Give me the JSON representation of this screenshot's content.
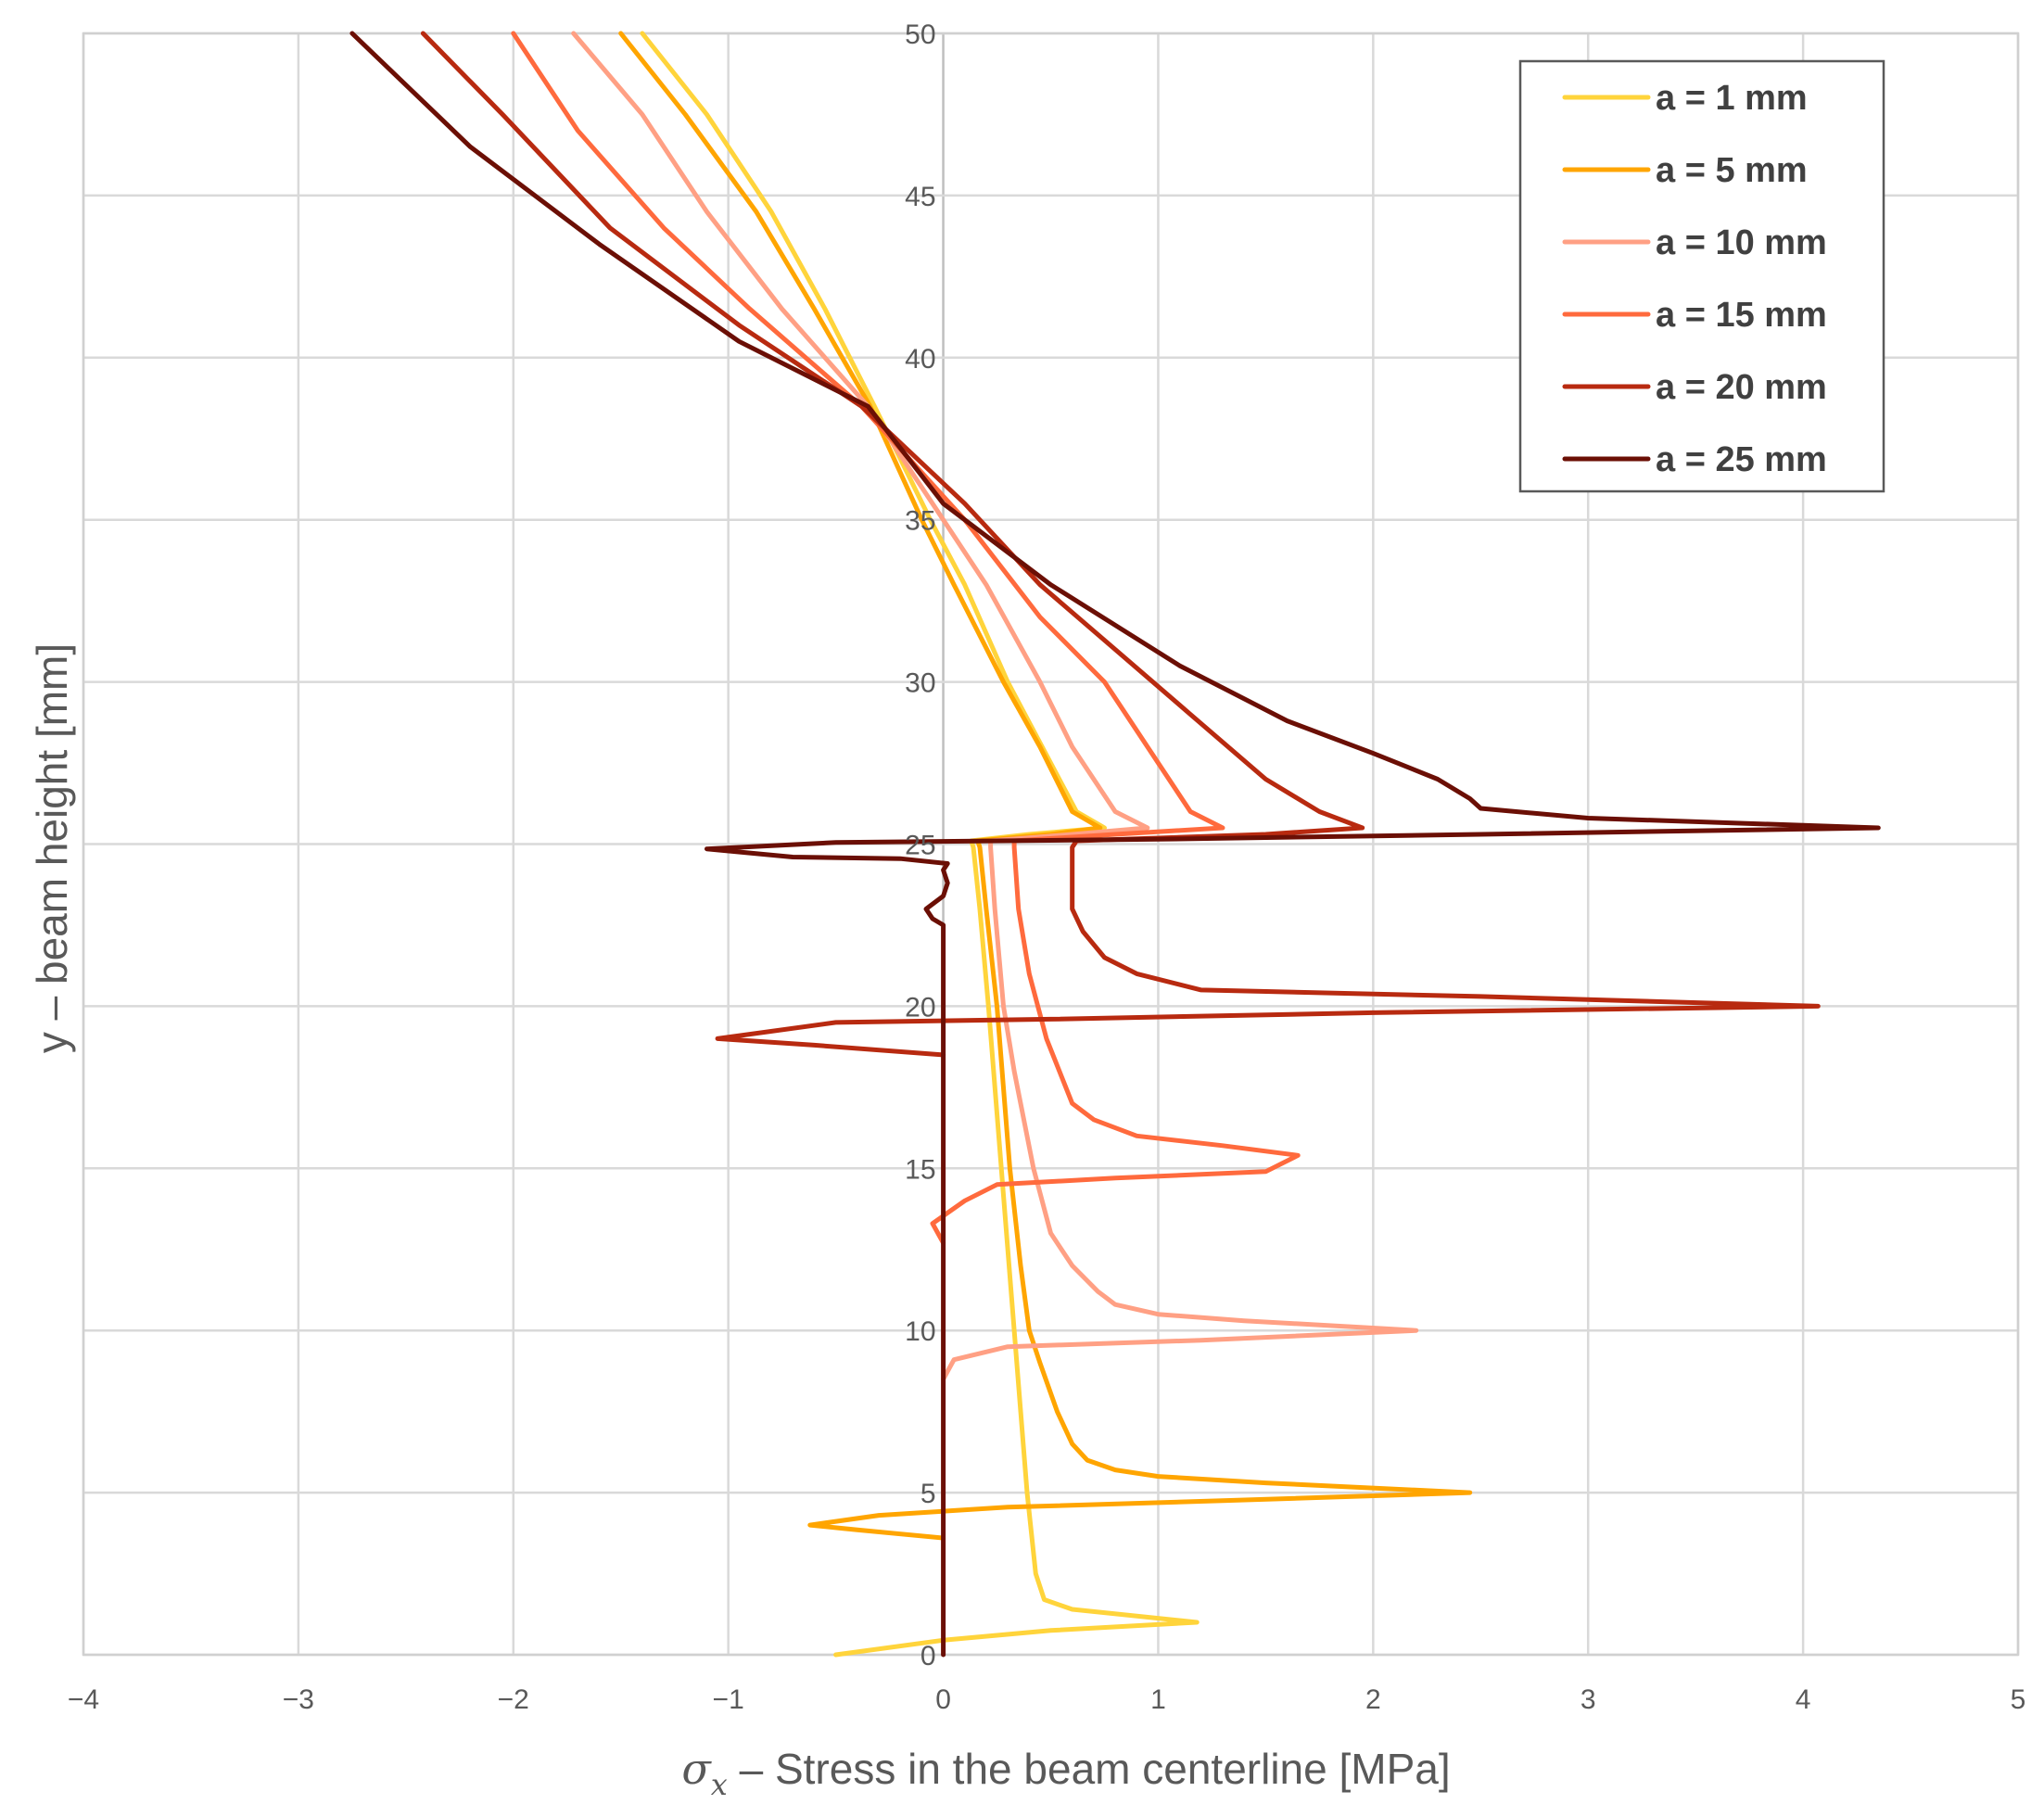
{
  "chart_data": {
    "type": "line",
    "title": "",
    "xlabel": "σx – Stress in the beam centerline [MPa]",
    "xlabel_symbol": "σ",
    "xlabel_subscript": "x",
    "xlabel_rest": " – Stress in the beam centerline [MPa]",
    "ylabel": "y – beam height [mm]",
    "xlim": [
      -4,
      5
    ],
    "ylim": [
      0,
      50
    ],
    "x_ticks": [
      -4,
      -3,
      -2,
      -1,
      0,
      1,
      2,
      3,
      4,
      5
    ],
    "y_ticks": [
      0,
      5,
      10,
      15,
      20,
      25,
      30,
      35,
      40,
      45,
      50
    ],
    "x_tick_labels": [
      "−4",
      "−3",
      "−2",
      "−1",
      "0",
      "1",
      "2",
      "3",
      "4",
      "5"
    ],
    "y_tick_labels": [
      "0",
      "5",
      "10",
      "15",
      "20",
      "25",
      "30",
      "35",
      "40",
      "45",
      "50"
    ],
    "grid": true,
    "legend_position": "top-right",
    "series": [
      {
        "name": "a = 1 mm",
        "color": "#FFD43B",
        "points": [
          [
            -0.5,
            0
          ],
          [
            0.0,
            0.45
          ],
          [
            0.5,
            0.75
          ],
          [
            1.18,
            1.0
          ],
          [
            0.6,
            1.4
          ],
          [
            0.47,
            1.7
          ],
          [
            0.43,
            2.5
          ],
          [
            0.39,
            5
          ],
          [
            0.33,
            10
          ],
          [
            0.27,
            15
          ],
          [
            0.21,
            20
          ],
          [
            0.17,
            23
          ],
          [
            0.14,
            24.9
          ],
          [
            0.13,
            25.1
          ],
          [
            0.4,
            25.3
          ],
          [
            0.75,
            25.5
          ],
          [
            0.62,
            26.0
          ],
          [
            0.46,
            28
          ],
          [
            0.3,
            30
          ],
          [
            0.1,
            33
          ],
          [
            -0.06,
            35
          ],
          [
            -0.32,
            38.5
          ],
          [
            -0.55,
            41.5
          ],
          [
            -0.8,
            44.5
          ],
          [
            -1.1,
            47.5
          ],
          [
            -1.4,
            50
          ]
        ]
      },
      {
        "name": "a = 5 mm",
        "color": "#FFA500",
        "points": [
          [
            0.0,
            3.6
          ],
          [
            -0.4,
            3.85
          ],
          [
            -0.62,
            4.0
          ],
          [
            -0.3,
            4.3
          ],
          [
            0.3,
            4.55
          ],
          [
            1.3,
            4.75
          ],
          [
            2.45,
            5.0
          ],
          [
            1.5,
            5.3
          ],
          [
            1.0,
            5.5
          ],
          [
            0.8,
            5.7
          ],
          [
            0.67,
            6.0
          ],
          [
            0.6,
            6.5
          ],
          [
            0.53,
            7.5
          ],
          [
            0.45,
            9
          ],
          [
            0.4,
            10
          ],
          [
            0.36,
            12
          ],
          [
            0.31,
            15
          ],
          [
            0.25,
            20
          ],
          [
            0.2,
            23
          ],
          [
            0.17,
            24.9
          ],
          [
            0.16,
            25.1
          ],
          [
            0.5,
            25.3
          ],
          [
            0.73,
            25.5
          ],
          [
            0.6,
            26.0
          ],
          [
            0.45,
            28
          ],
          [
            0.28,
            30
          ],
          [
            0.05,
            33
          ],
          [
            -0.1,
            35
          ],
          [
            -0.34,
            38.5
          ],
          [
            -0.6,
            41.5
          ],
          [
            -0.87,
            44.5
          ],
          [
            -1.2,
            47.5
          ],
          [
            -1.5,
            50
          ]
        ]
      },
      {
        "name": "a = 10 mm",
        "color": "#FFA084",
        "points": [
          [
            0.0,
            8.5
          ],
          [
            0.05,
            9.1
          ],
          [
            0.3,
            9.5
          ],
          [
            1.2,
            9.7
          ],
          [
            2.2,
            10.0
          ],
          [
            1.4,
            10.3
          ],
          [
            1.0,
            10.5
          ],
          [
            0.8,
            10.8
          ],
          [
            0.72,
            11.2
          ],
          [
            0.6,
            12
          ],
          [
            0.5,
            13
          ],
          [
            0.42,
            15
          ],
          [
            0.33,
            18
          ],
          [
            0.28,
            20
          ],
          [
            0.24,
            23
          ],
          [
            0.22,
            24.9
          ],
          [
            0.22,
            25.1
          ],
          [
            0.6,
            25.3
          ],
          [
            0.95,
            25.5
          ],
          [
            0.8,
            26.0
          ],
          [
            0.6,
            28
          ],
          [
            0.45,
            30
          ],
          [
            0.2,
            33
          ],
          [
            0.0,
            35
          ],
          [
            -0.35,
            38.5
          ],
          [
            -0.75,
            41.5
          ],
          [
            -1.1,
            44.5
          ],
          [
            -1.4,
            47.5
          ],
          [
            -1.72,
            50
          ]
        ]
      },
      {
        "name": "a = 15 mm",
        "color": "#FF6A3D",
        "points": [
          [
            0.0,
            12.7
          ],
          [
            -0.05,
            13.3
          ],
          [
            0.1,
            14.0
          ],
          [
            0.25,
            14.5
          ],
          [
            0.8,
            14.7
          ],
          [
            1.5,
            14.9
          ],
          [
            1.65,
            15.4
          ],
          [
            1.3,
            15.7
          ],
          [
            0.9,
            16.0
          ],
          [
            0.7,
            16.5
          ],
          [
            0.6,
            17
          ],
          [
            0.48,
            19
          ],
          [
            0.4,
            21
          ],
          [
            0.35,
            23
          ],
          [
            0.33,
            24.9
          ],
          [
            0.33,
            25.1
          ],
          [
            0.8,
            25.3
          ],
          [
            1.3,
            25.5
          ],
          [
            1.15,
            26.0
          ],
          [
            0.95,
            28
          ],
          [
            0.75,
            30
          ],
          [
            0.45,
            32
          ],
          [
            0.1,
            35
          ],
          [
            -0.38,
            38.5
          ],
          [
            -0.9,
            41.5
          ],
          [
            -1.3,
            44.0
          ],
          [
            -1.7,
            47.0
          ],
          [
            -2.0,
            50
          ]
        ]
      },
      {
        "name": "a = 20 mm",
        "color": "#B82A10",
        "points": [
          [
            0.0,
            18.5
          ],
          [
            -0.6,
            18.8
          ],
          [
            -1.05,
            19.0
          ],
          [
            -0.5,
            19.5
          ],
          [
            0.5,
            19.6
          ],
          [
            2.0,
            19.8
          ],
          [
            4.07,
            20.0
          ],
          [
            2.5,
            20.3
          ],
          [
            1.2,
            20.5
          ],
          [
            0.9,
            21.0
          ],
          [
            0.75,
            21.5
          ],
          [
            0.65,
            22.3
          ],
          [
            0.6,
            23.0
          ],
          [
            0.6,
            23.5
          ],
          [
            0.6,
            24.9
          ],
          [
            0.62,
            25.1
          ],
          [
            1.5,
            25.3
          ],
          [
            1.95,
            25.5
          ],
          [
            1.75,
            26.0
          ],
          [
            1.5,
            27.0
          ],
          [
            1.15,
            29.0
          ],
          [
            0.8,
            31.0
          ],
          [
            0.45,
            33.0
          ],
          [
            0.1,
            35.5
          ],
          [
            -0.38,
            38.5
          ],
          [
            -0.95,
            41.0
          ],
          [
            -1.55,
            44.0
          ],
          [
            -2.05,
            47.5
          ],
          [
            -2.42,
            50
          ]
        ]
      },
      {
        "name": "a = 25 mm",
        "color": "#6B0F05",
        "points": [
          [
            0.0,
            0
          ],
          [
            0.0,
            22.5
          ],
          [
            -0.05,
            22.7
          ],
          [
            -0.08,
            23.0
          ],
          [
            0.0,
            23.4
          ],
          [
            0.02,
            23.8
          ],
          [
            0.0,
            24.2
          ],
          [
            0.02,
            24.4
          ],
          [
            -0.2,
            24.55
          ],
          [
            -0.7,
            24.6
          ],
          [
            -1.1,
            24.85
          ],
          [
            -0.5,
            25.05
          ],
          [
            1.0,
            25.15
          ],
          [
            2.5,
            25.3
          ],
          [
            4.35,
            25.5
          ],
          [
            3.0,
            25.8
          ],
          [
            2.5,
            26.1
          ],
          [
            2.45,
            26.4
          ],
          [
            2.3,
            27.0
          ],
          [
            2.0,
            27.8
          ],
          [
            1.6,
            28.8
          ],
          [
            1.1,
            30.5
          ],
          [
            0.5,
            33.0
          ],
          [
            0.0,
            35.5
          ],
          [
            -0.35,
            38.5
          ],
          [
            -0.95,
            40.5
          ],
          [
            -1.6,
            43.5
          ],
          [
            -2.2,
            46.5
          ],
          [
            -2.75,
            50
          ]
        ]
      }
    ]
  }
}
